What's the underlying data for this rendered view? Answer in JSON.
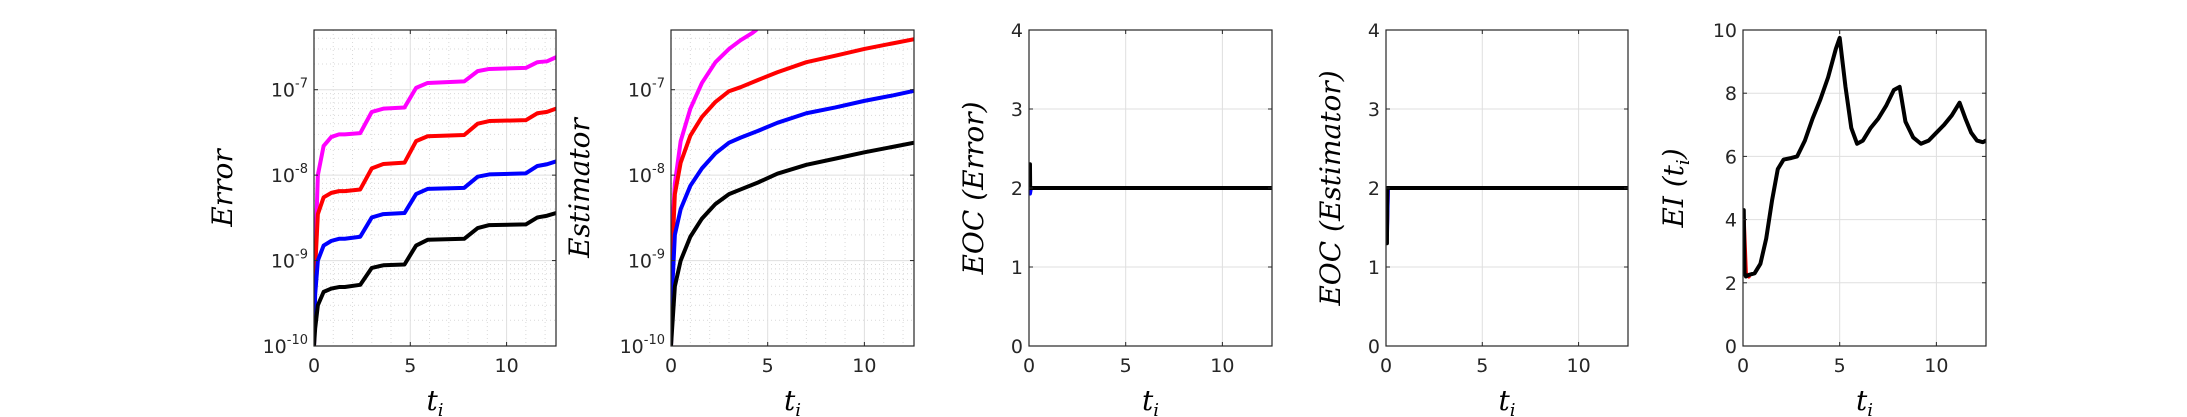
{
  "chart_data": [
    {
      "type": "line",
      "scale": "log",
      "xlim": [
        0,
        12.566
      ],
      "ylim": [
        1e-10,
        5e-07
      ],
      "xticks": [
        0,
        5,
        10
      ],
      "yticks": [
        {
          "value": 1e-10,
          "label": "10",
          "exp": "-10"
        },
        {
          "value": 1e-09,
          "label": "10",
          "exp": "-9"
        },
        {
          "value": 1e-08,
          "label": "10",
          "exp": "-8"
        },
        {
          "value": 1e-07,
          "label": "10",
          "exp": "-7"
        }
      ],
      "xlabel": "t",
      "xlabel_sub": "i",
      "ylabel": "Error",
      "ylabel_sub": "",
      "grid": true,
      "minor_grid": true,
      "series": [
        {
          "color": "#ff00ff",
          "x": [
            0,
            0.06,
            0.2,
            0.5,
            0.9,
            1.3,
            1.6,
            2.4,
            3.0,
            3.6,
            4.7,
            5.3,
            5.9,
            7.8,
            8.5,
            9.1,
            11.0,
            11.6,
            12.1,
            12.57
          ],
          "y": [
            1e-10,
            1e-09,
            1e-08,
            2.2e-08,
            2.8e-08,
            3e-08,
            3e-08,
            3.1e-08,
            5.5e-08,
            6e-08,
            6.2e-08,
            1.05e-07,
            1.2e-07,
            1.25e-07,
            1.65e-07,
            1.75e-07,
            1.8e-07,
            2.1e-07,
            2.15e-07,
            2.4e-07
          ]
        },
        {
          "color": "#ff0000",
          "x": [
            0,
            0.06,
            0.2,
            0.5,
            0.9,
            1.3,
            1.6,
            2.4,
            3.0,
            3.6,
            4.7,
            5.3,
            5.9,
            7.8,
            8.5,
            9.1,
            11.0,
            11.6,
            12.1,
            12.57
          ],
          "y": [
            1e-10,
            8e-10,
            3.5e-09,
            5.5e-09,
            6.2e-09,
            6.5e-09,
            6.5e-09,
            6.8e-09,
            1.2e-08,
            1.35e-08,
            1.4e-08,
            2.5e-08,
            2.85e-08,
            2.95e-08,
            4e-08,
            4.3e-08,
            4.4e-08,
            5.3e-08,
            5.5e-08,
            6e-08
          ]
        },
        {
          "color": "#0000ff",
          "x": [
            0,
            0.06,
            0.2,
            0.5,
            0.9,
            1.3,
            1.6,
            2.4,
            3.0,
            3.6,
            4.7,
            5.3,
            5.9,
            7.8,
            8.5,
            9.1,
            11.0,
            11.6,
            12.1,
            12.57
          ],
          "y": [
            1e-10,
            4e-10,
            1e-09,
            1.5e-09,
            1.7e-09,
            1.8e-09,
            1.8e-09,
            1.9e-09,
            3.2e-09,
            3.5e-09,
            3.6e-09,
            6e-09,
            6.9e-09,
            7.1e-09,
            9.6e-09,
            1.02e-08,
            1.05e-08,
            1.28e-08,
            1.34e-08,
            1.45e-08
          ]
        },
        {
          "color": "#000000",
          "x": [
            0,
            0.06,
            0.2,
            0.5,
            0.9,
            1.3,
            1.6,
            2.4,
            3.0,
            3.6,
            4.7,
            5.3,
            5.9,
            7.8,
            8.5,
            9.1,
            11.0,
            11.6,
            12.1,
            12.57
          ],
          "y": [
            1e-10,
            1.6e-10,
            3e-10,
            4.3e-10,
            4.7e-10,
            4.9e-10,
            4.9e-10,
            5.2e-10,
            8.2e-10,
            8.8e-10,
            9e-10,
            1.5e-09,
            1.75e-09,
            1.8e-09,
            2.4e-09,
            2.6e-09,
            2.65e-09,
            3.2e-09,
            3.35e-09,
            3.6e-09
          ]
        }
      ]
    },
    {
      "type": "line",
      "scale": "log",
      "xlim": [
        0,
        12.566
      ],
      "ylim": [
        1e-10,
        5e-07
      ],
      "xticks": [
        0,
        5,
        10
      ],
      "yticks": [
        {
          "value": 1e-10,
          "label": "10",
          "exp": "-10"
        },
        {
          "value": 1e-09,
          "label": "10",
          "exp": "-9"
        },
        {
          "value": 1e-08,
          "label": "10",
          "exp": "-8"
        },
        {
          "value": 1e-07,
          "label": "10",
          "exp": "-7"
        }
      ],
      "xlabel": "t",
      "xlabel_sub": "i",
      "ylabel": "Estimator",
      "ylabel_sub": "",
      "grid": true,
      "minor_grid": true,
      "series": [
        {
          "color": "#ff00ff",
          "x": [
            0,
            0.05,
            0.2,
            0.5,
            1.0,
            1.6,
            2.3,
            3.0,
            3.6,
            4.2,
            4.4
          ],
          "y": [
            1e-10,
            2e-09,
            8e-09,
            2.5e-08,
            6e-08,
            1.2e-07,
            2.1e-07,
            3e-07,
            3.8e-07,
            4.6e-07,
            5e-07
          ]
        },
        {
          "color": "#ff0000",
          "x": [
            0,
            0.05,
            0.2,
            0.5,
            1.0,
            1.6,
            2.3,
            3.0,
            3.6,
            4.5,
            5.5,
            7.0,
            8.5,
            10.0,
            11.5,
            12.57
          ],
          "y": [
            1e-10,
            1e-09,
            6e-09,
            1.4e-08,
            2.9e-08,
            4.8e-08,
            7.2e-08,
            9.6e-08,
            1.07e-07,
            1.3e-07,
            1.6e-07,
            2.1e-07,
            2.5e-07,
            3e-07,
            3.5e-07,
            3.9e-07
          ]
        },
        {
          "color": "#0000ff",
          "x": [
            0,
            0.05,
            0.2,
            0.5,
            1.0,
            1.6,
            2.3,
            3.0,
            3.6,
            4.5,
            5.5,
            7.0,
            8.5,
            10.0,
            11.5,
            12.57
          ],
          "y": [
            1e-10,
            4e-10,
            2e-09,
            4e-09,
            7.5e-09,
            1.2e-08,
            1.8e-08,
            2.4e-08,
            2.75e-08,
            3.3e-08,
            4.1e-08,
            5.3e-08,
            6.2e-08,
            7.4e-08,
            8.6e-08,
            9.7e-08
          ]
        },
        {
          "color": "#000000",
          "x": [
            0,
            0.05,
            0.2,
            0.5,
            1.0,
            1.6,
            2.3,
            3.0,
            3.6,
            4.5,
            5.5,
            7.0,
            8.5,
            10.0,
            11.5,
            12.57
          ],
          "y": [
            1e-10,
            1.5e-10,
            5e-10,
            1e-09,
            1.9e-09,
            3.1e-09,
            4.6e-09,
            6e-09,
            6.8e-09,
            8.2e-09,
            1.04e-08,
            1.32e-08,
            1.56e-08,
            1.85e-08,
            2.15e-08,
            2.4e-08
          ]
        }
      ]
    },
    {
      "type": "line",
      "scale": "linear",
      "xlim": [
        0,
        12.566
      ],
      "ylim": [
        0,
        4
      ],
      "xticks": [
        0,
        5,
        10
      ],
      "yticks": [
        {
          "value": 0,
          "label": "0"
        },
        {
          "value": 1,
          "label": "1"
        },
        {
          "value": 2,
          "label": "2"
        },
        {
          "value": 3,
          "label": "3"
        },
        {
          "value": 4,
          "label": "4"
        }
      ],
      "xlabel": "t",
      "xlabel_sub": "i",
      "ylabel": "EOC (Error)",
      "ylabel_sub": "",
      "grid": true,
      "minor_grid": false,
      "series": [
        {
          "color": "#ff0000",
          "x": [
            0.05,
            0.1,
            12.57
          ],
          "y": [
            1.97,
            2.0,
            2.0
          ]
        },
        {
          "color": "#0000ff",
          "x": [
            0.05,
            0.1,
            12.57
          ],
          "y": [
            1.93,
            2.0,
            2.0
          ]
        },
        {
          "color": "#000000",
          "x": [
            0.05,
            0.06,
            0.1,
            12.57
          ],
          "y": [
            2.3,
            2.0,
            2.0,
            2.0
          ]
        }
      ]
    },
    {
      "type": "line",
      "scale": "linear",
      "xlim": [
        0,
        12.566
      ],
      "ylim": [
        0,
        4
      ],
      "xticks": [
        0,
        5,
        10
      ],
      "yticks": [
        {
          "value": 0,
          "label": "0"
        },
        {
          "value": 1,
          "label": "1"
        },
        {
          "value": 2,
          "label": "2"
        },
        {
          "value": 3,
          "label": "3"
        },
        {
          "value": 4,
          "label": "4"
        }
      ],
      "xlabel": "t",
      "xlabel_sub": "i",
      "ylabel": "EOC (Estimator)",
      "ylabel_sub": "",
      "grid": true,
      "minor_grid": false,
      "series": [
        {
          "color": "#ff0000",
          "x": [
            0.05,
            0.1,
            12.57
          ],
          "y": [
            1.5,
            2.0,
            2.0
          ]
        },
        {
          "color": "#0000ff",
          "x": [
            0.05,
            0.1,
            12.57
          ],
          "y": [
            1.4,
            2.0,
            2.0
          ]
        },
        {
          "color": "#000000",
          "x": [
            0.05,
            0.06,
            0.1,
            12.57
          ],
          "y": [
            1.3,
            2.0,
            2.0,
            2.0
          ]
        }
      ]
    },
    {
      "type": "line",
      "scale": "linear",
      "xlim": [
        0,
        12.566
      ],
      "ylim": [
        0,
        10
      ],
      "xticks": [
        0,
        5,
        10
      ],
      "yticks": [
        {
          "value": 0,
          "label": "0"
        },
        {
          "value": 2,
          "label": "2"
        },
        {
          "value": 4,
          "label": "4"
        },
        {
          "value": 6,
          "label": "6"
        },
        {
          "value": 8,
          "label": "8"
        },
        {
          "value": 10,
          "label": "10"
        }
      ],
      "xlabel": "t",
      "xlabel_sub": "i",
      "ylabel": "EI (t",
      "ylabel_sub": "i",
      "ylabel_close": ")",
      "grid": true,
      "minor_grid": false,
      "series": [
        {
          "color": "#ff0000",
          "x": [
            0.04,
            0.15,
            0.3
          ],
          "y": [
            4.0,
            2.3,
            2.2
          ]
        },
        {
          "color": "#000000",
          "x": [
            0.04,
            0.08,
            0.15,
            0.3,
            0.6,
            0.9,
            1.2,
            1.5,
            1.8,
            2.1,
            2.5,
            2.8,
            3.2,
            3.6,
            4.0,
            4.4,
            4.8,
            5.0,
            5.3,
            5.6,
            5.9,
            6.2,
            6.6,
            7.0,
            7.4,
            7.8,
            8.1,
            8.4,
            8.8,
            9.2,
            9.6,
            10.0,
            10.4,
            10.8,
            11.2,
            11.5,
            11.8,
            12.1,
            12.4,
            12.57
          ],
          "y": [
            4.3,
            2.3,
            2.2,
            2.25,
            2.3,
            2.6,
            3.4,
            4.6,
            5.6,
            5.9,
            5.95,
            6.0,
            6.5,
            7.2,
            7.8,
            8.5,
            9.4,
            9.75,
            8.2,
            6.9,
            6.4,
            6.5,
            6.9,
            7.2,
            7.6,
            8.1,
            8.2,
            7.1,
            6.6,
            6.4,
            6.5,
            6.75,
            7.0,
            7.3,
            7.7,
            7.2,
            6.75,
            6.5,
            6.45,
            6.5
          ]
        }
      ]
    }
  ]
}
